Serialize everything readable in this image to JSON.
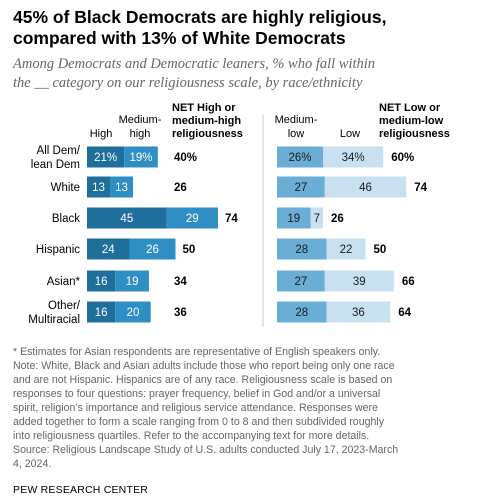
{
  "title_line1": "45% of Black Democrats are highly religious,",
  "title_line2": "compared with 13% of White Democrats",
  "subtitle_line1": "Among Democrats and Democratic leaners, % who fall within",
  "subtitle_line2": "the __ category on our religiousness scale, by race/ethnicity",
  "notes": [
    "* Estimates for Asian respondents are representative of English speakers only.",
    "Note: White, Black and Asian adults include those who report being only one race",
    "and are not Hispanic. Hispanics are of any race. Religiousness scale is based on",
    "responses to four questions: prayer frequency, belief in God and/or a universal",
    "spirit, religion’s importance and religious service attendance. Responses were",
    "added together to form a scale ranging from 0 to 8 and then subdivided roughly",
    "into religiousness quartiles. Refer to the accompanying text for more details.",
    "Source: Religious Landscape Study of U.S. adults conducted July 17, 2023-March",
    "4, 2024."
  ],
  "source_org": "PEW RESEARCH CENTER",
  "colors": {
    "high": "#1f6f9c",
    "medium_high": "#2f8fc4",
    "medium_low": "#6aaed6",
    "low": "#c9e0f1",
    "divider": "#c8c8c8"
  },
  "chart_data": {
    "type": "bar",
    "stacked": true,
    "categories": [
      [
        "All Dem/",
        "lean Dem"
      ],
      [
        "White"
      ],
      [
        "Black"
      ],
      [
        "Hispanic"
      ],
      [
        "Asian*"
      ],
      [
        "Other/",
        "Multiracial"
      ]
    ],
    "panels": [
      {
        "headers": {
          "high": [
            "High"
          ],
          "medium_high": [
            "Medium-",
            "high"
          ],
          "net": [
            "NET High or",
            "medium-high",
            "religiousness"
          ]
        },
        "series": [
          {
            "name": "High",
            "values": [
              21,
              13,
              45,
              24,
              16,
              16
            ]
          },
          {
            "name": "Medium-high",
            "values": [
              19,
              13,
              29,
              26,
              19,
              20
            ]
          }
        ],
        "net": [
          40,
          26,
          74,
          50,
          34,
          36
        ],
        "value_suffix_first_row": "%"
      },
      {
        "headers": {
          "medium_low": [
            "Medium-",
            "low"
          ],
          "low": [
            "Low"
          ],
          "net": [
            "NET Low or",
            "medium-low",
            "religiousness"
          ]
        },
        "series": [
          {
            "name": "Medium-low",
            "values": [
              26,
              27,
              19,
              28,
              27,
              28
            ]
          },
          {
            "name": "Low",
            "values": [
              34,
              46,
              7,
              22,
              39,
              36
            ]
          }
        ],
        "net": [
          60,
          74,
          26,
          50,
          66,
          64
        ],
        "value_suffix_first_row": "%"
      }
    ]
  }
}
